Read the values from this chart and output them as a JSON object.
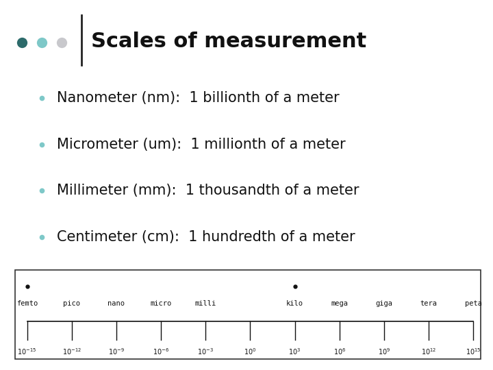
{
  "title": "Scales of measurement",
  "title_fontsize": 22,
  "bg_color": "#ffffff",
  "dot_colors": [
    "#2d6b6b",
    "#7ec8c8",
    "#c8c8cc"
  ],
  "bullet_items": [
    "Nanometer (nm):  1 billionth of a meter",
    "Micrometer (um):  1 millionth of a meter",
    "Millimeter (mm):  1 thousandth of a meter",
    "Centimeter (cm):  1 hundredth of a meter"
  ],
  "bullet_fontsize": 15,
  "bullet_dot_color": "#7ec8c8",
  "scale_labels": [
    "femto",
    "pico",
    "nano",
    "micro",
    "milli",
    "",
    "kilo",
    "mega",
    "giga",
    "tera",
    "peta"
  ],
  "scale_exponents": [
    "-15",
    "-12",
    "-9",
    "-6",
    "-3",
    "0",
    "3",
    "6",
    "9",
    "12",
    "15"
  ],
  "scale_dots_at": [
    0,
    6
  ],
  "scale_fontsize": 7.5
}
